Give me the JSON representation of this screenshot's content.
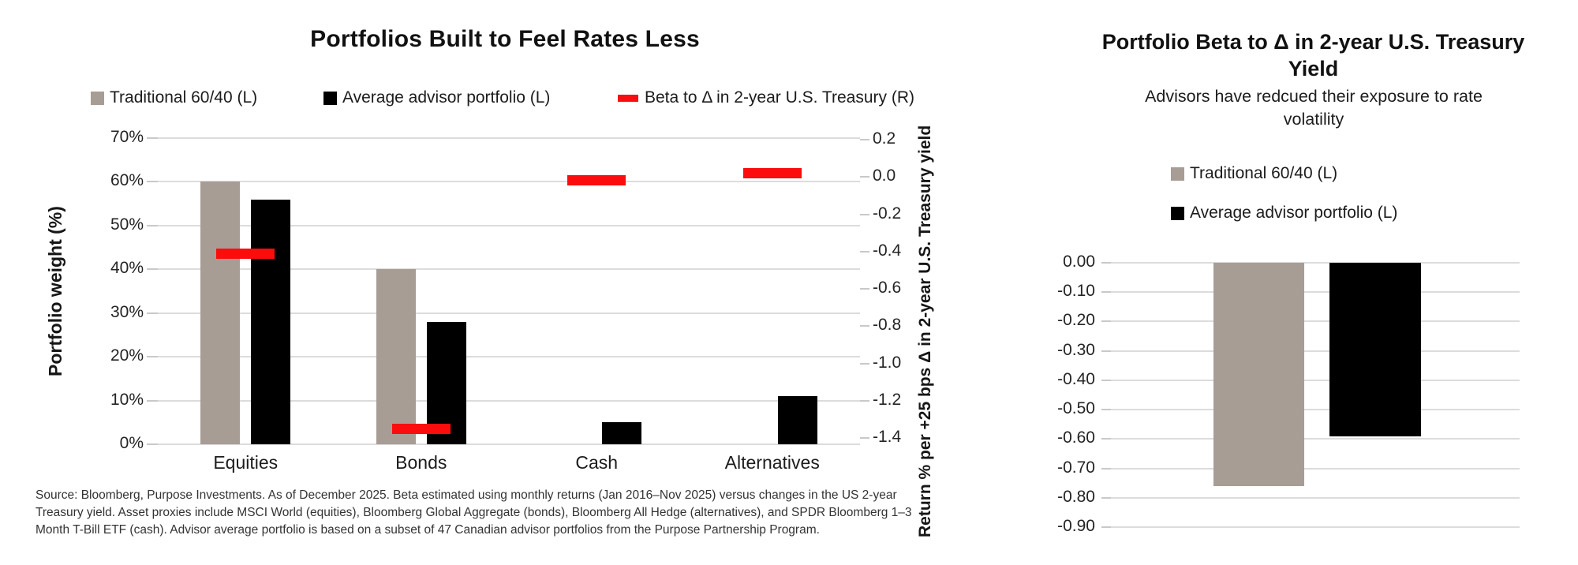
{
  "chart_data": [
    {
      "type": "bar",
      "title": "Portfolios Built to Feel Rates Less",
      "legend_position": "top",
      "grid": true,
      "categories": [
        "Equities",
        "Bonds",
        "Cash",
        "Alternatives"
      ],
      "series": [
        {
          "name": "Traditional 60/40 (L)",
          "axis": "left",
          "marker": "square",
          "color": "#a79d95",
          "values": [
            60,
            40,
            0,
            0
          ]
        },
        {
          "name": "Average advisor portfolio (L)",
          "axis": "left",
          "marker": "square",
          "color": "#000000",
          "values": [
            56,
            28,
            5,
            11
          ]
        },
        {
          "name": "Beta to Δ in 2-year U.S. Treasury (R)",
          "axis": "right",
          "marker": "dash",
          "color": "#fb0d0d",
          "values": [
            -0.41,
            -1.35,
            -0.02,
            0.02
          ]
        }
      ],
      "y_left": {
        "label": "Portfolio weight (%)",
        "ticks": [
          "70%",
          "60%",
          "50%",
          "40%",
          "30%",
          "20%",
          "10%",
          "0%"
        ],
        "min": 0,
        "max": 70
      },
      "y_right": {
        "label": "Return % per +25 bps Δ in 2-year U.S. Treasury yield",
        "ticks": [
          "0.2",
          "0.0",
          "-0.2",
          "-0.4",
          "-0.6",
          "-0.8",
          "-1.0",
          "-1.2",
          "-1.4"
        ],
        "min": -1.4,
        "max": 0.2
      },
      "source_lines": [
        "Source: Bloomberg, Purpose Investments. As of December 2025. Beta estimated using monthly returns (Jan 2016–Nov 2025) versus changes in the US 2-year",
        "Treasury yield. Asset proxies include MSCI World (equities), Bloomberg Global Aggregate (bonds), Bloomberg All Hedge (alternatives), and SPDR Bloomberg 1–3",
        "Month T-Bill ETF (cash). Advisor average portfolio is based on a subset of 47 Canadian advisor portfolios from the Purpose Partnership Program."
      ]
    },
    {
      "type": "bar",
      "title": "Portfolio Beta to Δ in 2-year U.S. Treasury Yield",
      "subtitle": "Advisors have redcued their exposure to rate volatility",
      "legend_position": "top-stacked",
      "grid": true,
      "categories": [
        ""
      ],
      "series": [
        {
          "name": "Traditional 60/40 (L)",
          "marker": "square",
          "color": "#a79d95",
          "values": [
            -0.76
          ]
        },
        {
          "name": "Average advisor portfolio (L)",
          "marker": "square",
          "color": "#000000",
          "values": [
            -0.59
          ]
        }
      ],
      "y": {
        "label": "",
        "ticks": [
          "0.00",
          "-0.10",
          "-0.20",
          "-0.30",
          "-0.40",
          "-0.50",
          "-0.60",
          "-0.70",
          "-0.80",
          "-0.90"
        ],
        "min": -0.9,
        "max": 0
      }
    }
  ]
}
